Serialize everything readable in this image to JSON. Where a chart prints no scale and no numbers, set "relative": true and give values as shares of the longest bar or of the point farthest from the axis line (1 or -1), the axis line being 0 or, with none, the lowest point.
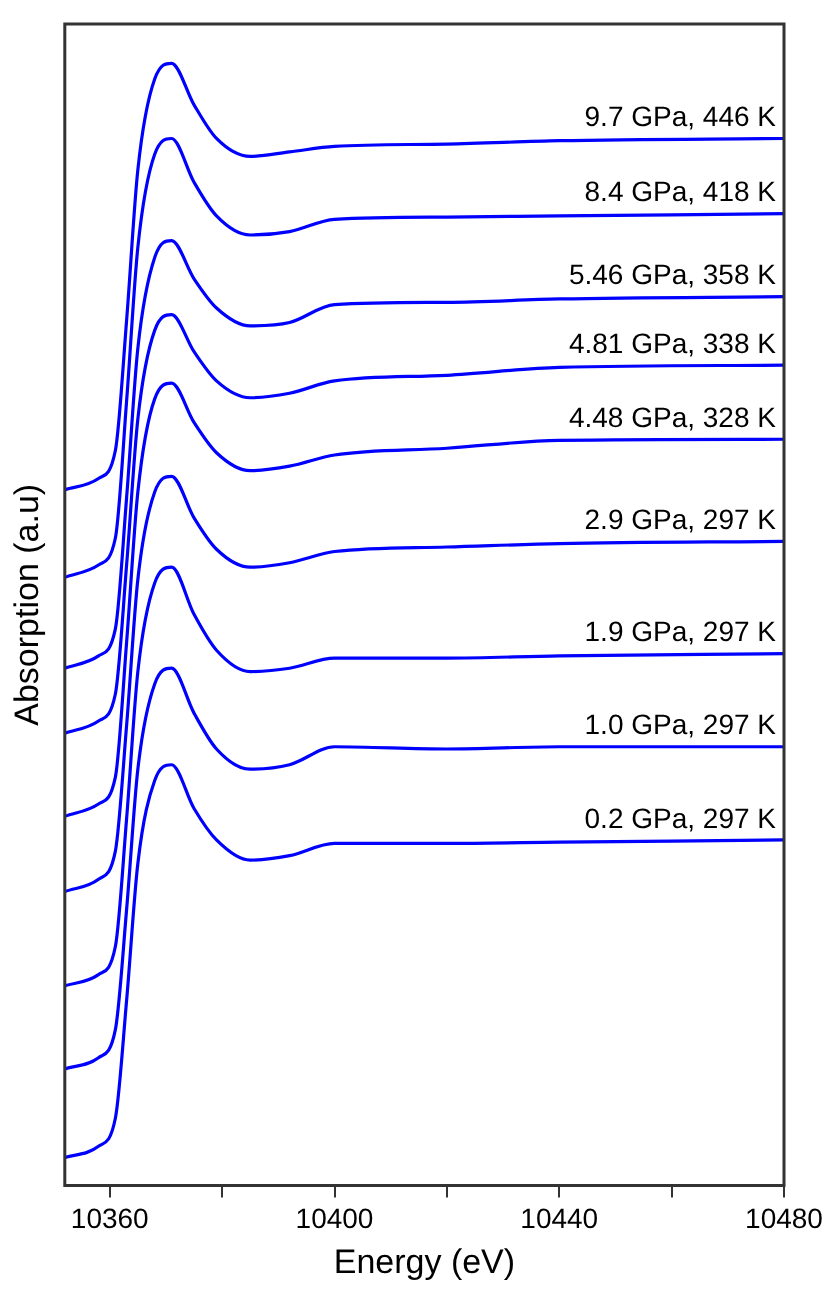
{
  "chart_data": {
    "type": "line",
    "xlabel": "Energy (eV)",
    "ylabel": "Absorption (a.u)",
    "relative": true,
    "x": [
      10352,
      10358,
      10361,
      10363,
      10365,
      10368,
      10371,
      10375,
      10379,
      10385,
      10392,
      10400,
      10420,
      10440,
      10480
    ],
    "xlim": [
      10352,
      10480
    ],
    "xticks": [
      10360,
      {
        "value": 10380,
        "label": null
      },
      10400,
      {
        "value": 10420,
        "label": null
      },
      10440,
      {
        "value": 10460,
        "label": null
      },
      10480
    ],
    "series": [
      {
        "name": "9.7 GPa, 446 K",
        "color": "#0000ff",
        "values": [
          0.62,
          0.63,
          0.655,
          0.771,
          0.905,
          0.986,
          1.0,
          0.963,
          0.933,
          0.917,
          0.921,
          0.926,
          0.928,
          0.931,
          0.933
        ]
      },
      {
        "name": "8.4 GPa, 418 K",
        "color": "#0000ff",
        "values": [
          0.542,
          0.553,
          0.577,
          0.699,
          0.836,
          0.919,
          0.933,
          0.894,
          0.864,
          0.847,
          0.85,
          0.861,
          0.863,
          0.864,
          0.866
        ]
      },
      {
        "name": "5.46 GPa, 358 K",
        "color": "#0000ff",
        "values": [
          0.461,
          0.472,
          0.496,
          0.613,
          0.746,
          0.827,
          0.842,
          0.808,
          0.782,
          0.766,
          0.769,
          0.785,
          0.787,
          0.79,
          0.792
        ]
      },
      {
        "name": "4.81 GPa, 338 K",
        "color": "#0000ff",
        "values": [
          0.403,
          0.414,
          0.438,
          0.553,
          0.683,
          0.762,
          0.776,
          0.743,
          0.717,
          0.702,
          0.706,
          0.717,
          0.722,
          0.729,
          0.731
        ]
      },
      {
        "name": "4.48 GPa, 328 K",
        "color": "#0000ff",
        "values": [
          0.329,
          0.34,
          0.364,
          0.484,
          0.618,
          0.701,
          0.715,
          0.68,
          0.653,
          0.637,
          0.641,
          0.651,
          0.657,
          0.664,
          0.665
        ]
      },
      {
        "name": "2.9 GPa, 297 K",
        "color": "#0000ff",
        "values": [
          0.262,
          0.273,
          0.298,
          0.41,
          0.54,
          0.618,
          0.632,
          0.595,
          0.567,
          0.551,
          0.555,
          0.565,
          0.569,
          0.572,
          0.574
        ]
      },
      {
        "name": "1.9 GPa, 297 K",
        "color": "#0000ff",
        "values": [
          0.178,
          0.188,
          0.213,
          0.327,
          0.458,
          0.537,
          0.551,
          0.509,
          0.477,
          0.458,
          0.461,
          0.47,
          0.47,
          0.472,
          0.474
        ]
      },
      {
        "name": "1.0 GPa, 297 K",
        "color": "#0000ff",
        "values": [
          0.104,
          0.114,
          0.139,
          0.246,
          0.371,
          0.447,
          0.461,
          0.421,
          0.389,
          0.371,
          0.375,
          0.391,
          0.389,
          0.391,
          0.391
        ]
      },
      {
        "name": "0.2 GPa, 297 K",
        "color": "#0000ff",
        "values": [
          0.025,
          0.035,
          0.06,
          0.165,
          0.287,
          0.361,
          0.375,
          0.336,
          0.308,
          0.29,
          0.294,
          0.305,
          0.305,
          0.306,
          0.308
        ]
      }
    ],
    "grid": false,
    "legend": false,
    "marker": "none",
    "line_style": "solid"
  }
}
